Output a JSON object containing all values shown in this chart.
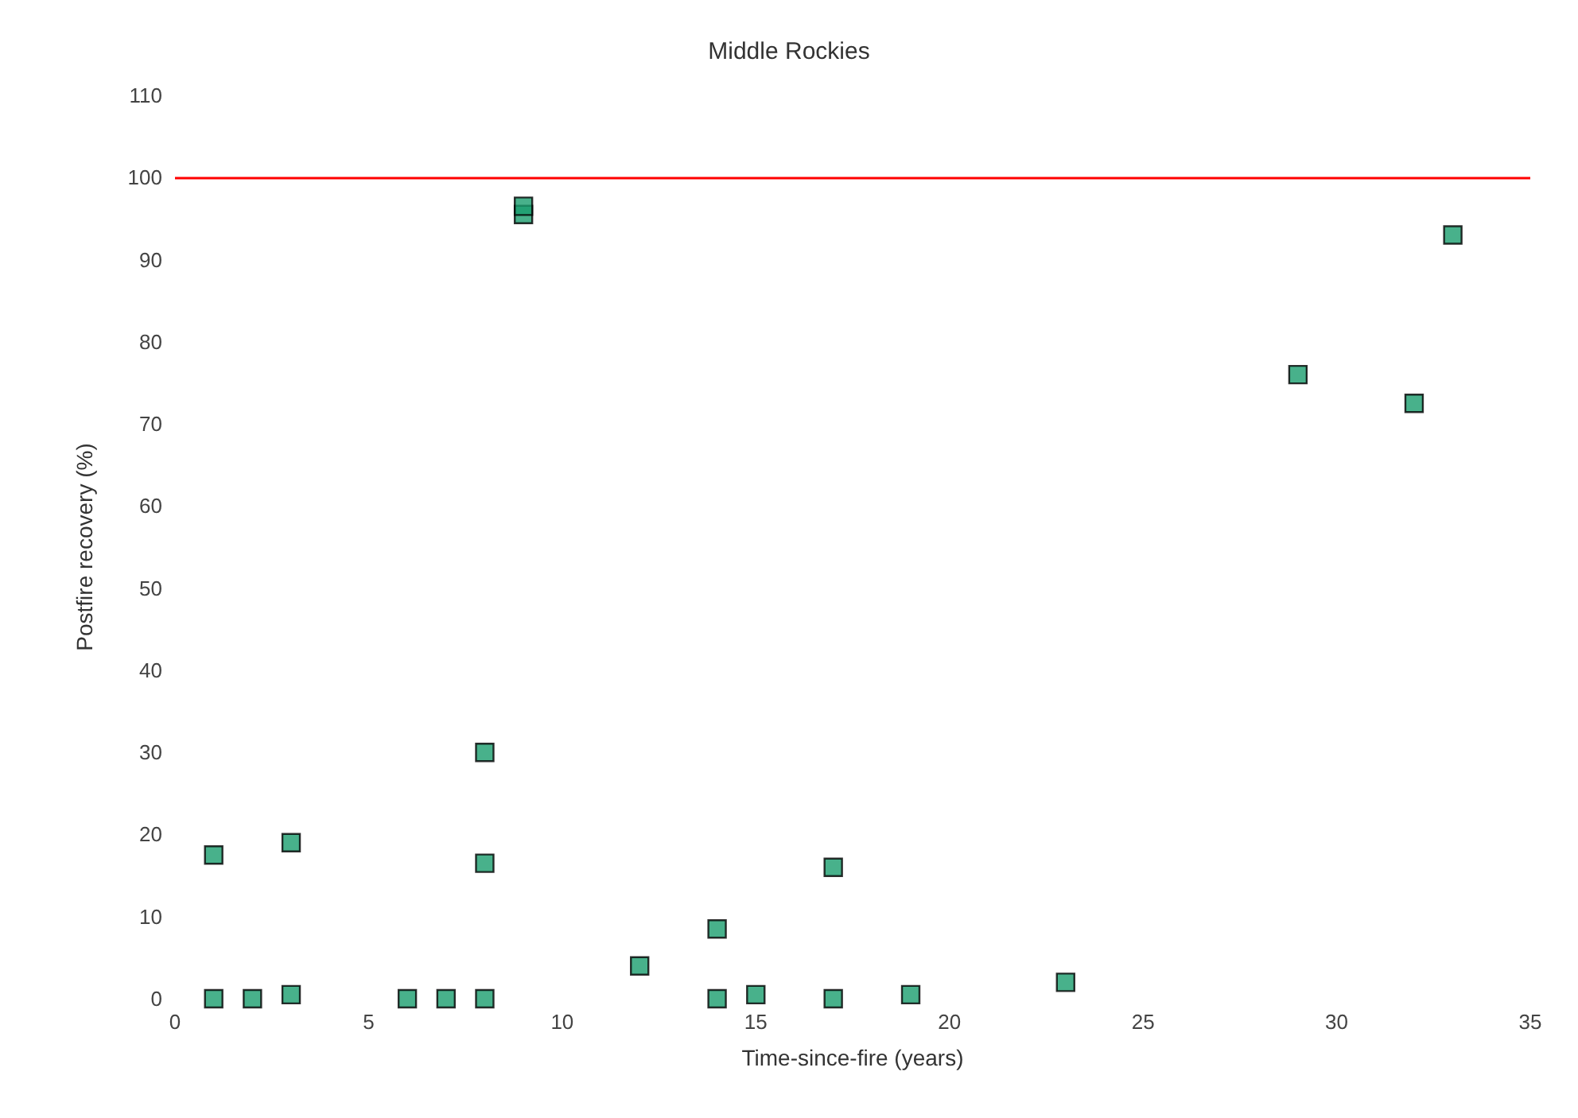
{
  "chart_data": {
    "type": "scatter",
    "title": "Middle Rockies",
    "xlabel": "Time-since-fire (years)",
    "ylabel": "Postfire recovery (%)",
    "x": [
      1,
      1,
      2,
      3,
      3,
      6,
      7,
      8,
      8,
      8,
      9,
      9,
      12,
      14,
      14,
      15,
      17,
      17,
      19,
      23,
      29,
      32,
      33
    ],
    "values": [
      17.5,
      0,
      0,
      19,
      0.5,
      0,
      0,
      0,
      30,
      16.5,
      95.5,
      96.5,
      4,
      8.5,
      0,
      0.5,
      16,
      0,
      0.5,
      2,
      76,
      72.5,
      93
    ],
    "color": "#1a9e6e",
    "marker": "square",
    "xlim": [
      0,
      35
    ],
    "xticks": [
      0,
      5,
      10,
      15,
      20,
      25,
      30,
      35
    ],
    "ylim": [
      0,
      110
    ],
    "yticks": [
      0,
      10,
      20,
      30,
      40,
      50,
      60,
      70,
      80,
      90,
      100,
      110
    ],
    "ref_lines": [
      {
        "axis": "y",
        "value": 100,
        "color": "#ff0000"
      }
    ]
  }
}
